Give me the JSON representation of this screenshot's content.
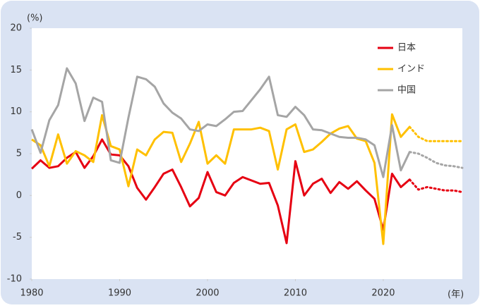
{
  "chart_data": {
    "type": "line",
    "y_label": "(%)",
    "x_label": "(年)",
    "x": [
      1980,
      1981,
      1982,
      1983,
      1984,
      1985,
      1986,
      1987,
      1988,
      1989,
      1990,
      1991,
      1992,
      1993,
      1994,
      1995,
      1996,
      1997,
      1998,
      1999,
      2000,
      2001,
      2002,
      2003,
      2004,
      2005,
      2006,
      2007,
      2008,
      2009,
      2010,
      2011,
      2012,
      2013,
      2014,
      2015,
      2016,
      2017,
      2018,
      2019,
      2020,
      2021,
      2022,
      2023,
      2024,
      2025,
      2026,
      2027,
      2028,
      2029
    ],
    "forecast_from": 2023,
    "series": [
      {
        "name": "日本",
        "color": "#e60012",
        "values": [
          3.2,
          4.2,
          3.3,
          3.5,
          4.5,
          5.2,
          3.3,
          4.7,
          6.7,
          4.9,
          4.8,
          3.5,
          0.9,
          -0.5,
          1.0,
          2.6,
          3.1,
          1.0,
          -1.3,
          -0.3,
          2.8,
          0.4,
          0.0,
          1.5,
          2.2,
          1.8,
          1.4,
          1.5,
          -1.2,
          -5.7,
          4.1,
          0.0,
          1.4,
          2.0,
          0.3,
          1.6,
          0.8,
          1.7,
          0.6,
          -0.4,
          -4.1,
          2.6,
          1.0,
          1.9,
          0.7,
          1.0,
          0.8,
          0.6,
          0.6,
          0.4
        ]
      },
      {
        "name": "インド",
        "color": "#ffc000",
        "values": [
          6.7,
          6.0,
          3.5,
          7.3,
          3.8,
          5.3,
          4.8,
          4.0,
          9.6,
          5.9,
          5.5,
          1.1,
          5.5,
          4.8,
          6.7,
          7.6,
          7.5,
          4.0,
          6.2,
          8.8,
          3.8,
          4.8,
          3.8,
          7.9,
          7.9,
          7.9,
          8.1,
          7.7,
          3.1,
          7.9,
          8.5,
          5.2,
          5.5,
          6.4,
          7.4,
          8.0,
          8.3,
          6.8,
          6.5,
          3.9,
          -5.8,
          9.7,
          7.0,
          8.2,
          7.0,
          6.5,
          6.5,
          6.5,
          6.5,
          6.5
        ]
      },
      {
        "name": "中国",
        "color": "#a5a5a5",
        "values": [
          7.9,
          5.1,
          9.0,
          10.8,
          15.2,
          13.4,
          8.9,
          11.7,
          11.2,
          4.2,
          3.9,
          9.3,
          14.2,
          13.9,
          13.0,
          11.0,
          9.9,
          9.2,
          7.9,
          7.7,
          8.5,
          8.3,
          9.1,
          10.0,
          10.1,
          11.4,
          12.7,
          14.2,
          9.6,
          9.4,
          10.6,
          9.6,
          7.9,
          7.8,
          7.4,
          7.0,
          6.9,
          6.9,
          6.7,
          6.0,
          2.2,
          8.4,
          3.0,
          5.2,
          5.0,
          4.5,
          3.9,
          3.6,
          3.5,
          3.3
        ]
      }
    ],
    "xlim": [
      1980,
      2029
    ],
    "xticks": [
      1980,
      1990,
      2000,
      2010,
      2020
    ],
    "ylim": [
      -10,
      20
    ],
    "yticks": [
      20,
      15,
      10,
      5,
      0,
      -5,
      -10
    ],
    "legend": "upper-right"
  }
}
